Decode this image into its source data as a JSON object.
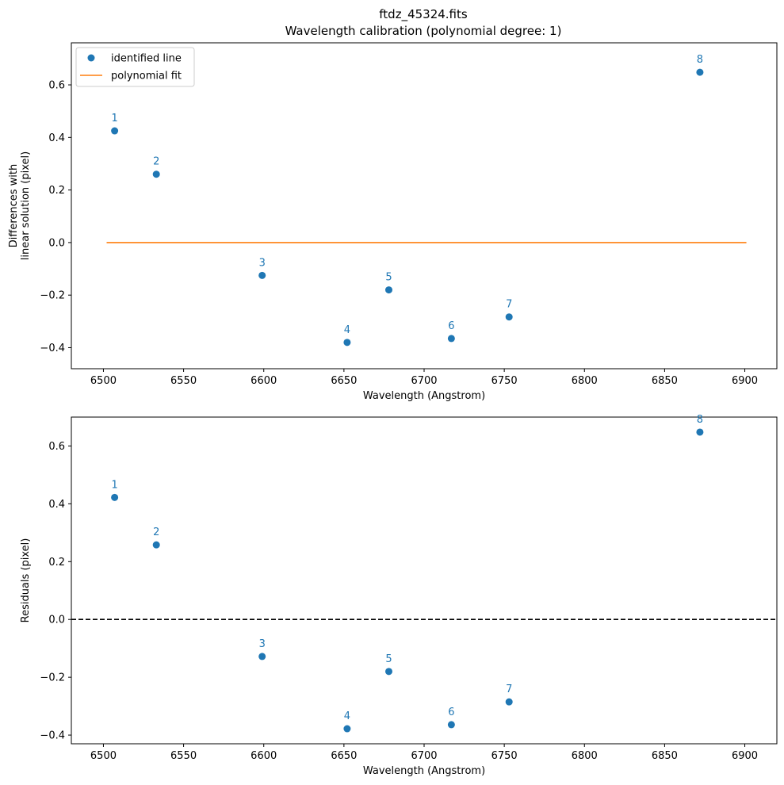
{
  "chart_data": [
    {
      "type": "scatter",
      "title": "ftdz_45324.fits",
      "subtitle": "Wavelength calibration (polynomial degree: 1)",
      "xlabel": "Wavelength (Angstrom)",
      "ylabel_lines": [
        "Differences with",
        "linear solution (pixel)"
      ],
      "xlim": [
        6480,
        6920
      ],
      "ylim": [
        -0.48,
        0.76
      ],
      "xticks": [
        6500,
        6550,
        6600,
        6650,
        6700,
        6750,
        6800,
        6850,
        6900
      ],
      "yticks": [
        -0.4,
        -0.2,
        0.0,
        0.2,
        0.4,
        0.6
      ],
      "ytick_labels": [
        "−0.4",
        "−0.2",
        "0.0",
        "0.2",
        "0.4",
        "0.6"
      ],
      "series": [
        {
          "name": "identified line",
          "kind": "points",
          "x": [
            6507,
            6533,
            6599,
            6652,
            6678,
            6717,
            6753,
            6872
          ],
          "y": [
            0.425,
            0.26,
            -0.125,
            -0.38,
            -0.18,
            -0.365,
            -0.283,
            0.648
          ],
          "labels": [
            "1",
            "2",
            "3",
            "4",
            "5",
            "6",
            "7",
            "8"
          ]
        },
        {
          "name": "polynomial fit",
          "kind": "line",
          "x": [
            6502,
            6901
          ],
          "y": [
            0.0,
            0.0
          ]
        }
      ],
      "legend": {
        "position": "top-left",
        "entries": [
          "identified line",
          "polynomial fit"
        ]
      }
    },
    {
      "type": "scatter",
      "xlabel": "Wavelength (Angstrom)",
      "ylabel_lines": [
        "Residuals (pixel)"
      ],
      "xlim": [
        6480,
        6920
      ],
      "ylim": [
        -0.43,
        0.7
      ],
      "xticks": [
        6500,
        6550,
        6600,
        6650,
        6700,
        6750,
        6800,
        6850,
        6900
      ],
      "yticks": [
        -0.4,
        -0.2,
        0.0,
        0.2,
        0.4,
        0.6
      ],
      "ytick_labels": [
        "−0.4",
        "−0.2",
        "0.0",
        "0.2",
        "0.4",
        "0.6"
      ],
      "series": [
        {
          "name": "residuals",
          "kind": "points",
          "x": [
            6507,
            6533,
            6599,
            6652,
            6678,
            6717,
            6753,
            6872
          ],
          "y": [
            0.422,
            0.258,
            -0.128,
            -0.378,
            -0.18,
            -0.364,
            -0.285,
            0.648
          ],
          "labels": [
            "1",
            "2",
            "3",
            "4",
            "5",
            "6",
            "7",
            "8"
          ]
        }
      ],
      "reference_line": {
        "y": 0.0,
        "style": "dashed"
      }
    }
  ],
  "colors": {
    "points": "#1f77b4",
    "fit_line": "#ff7f0e",
    "reference_line": "#000000"
  }
}
